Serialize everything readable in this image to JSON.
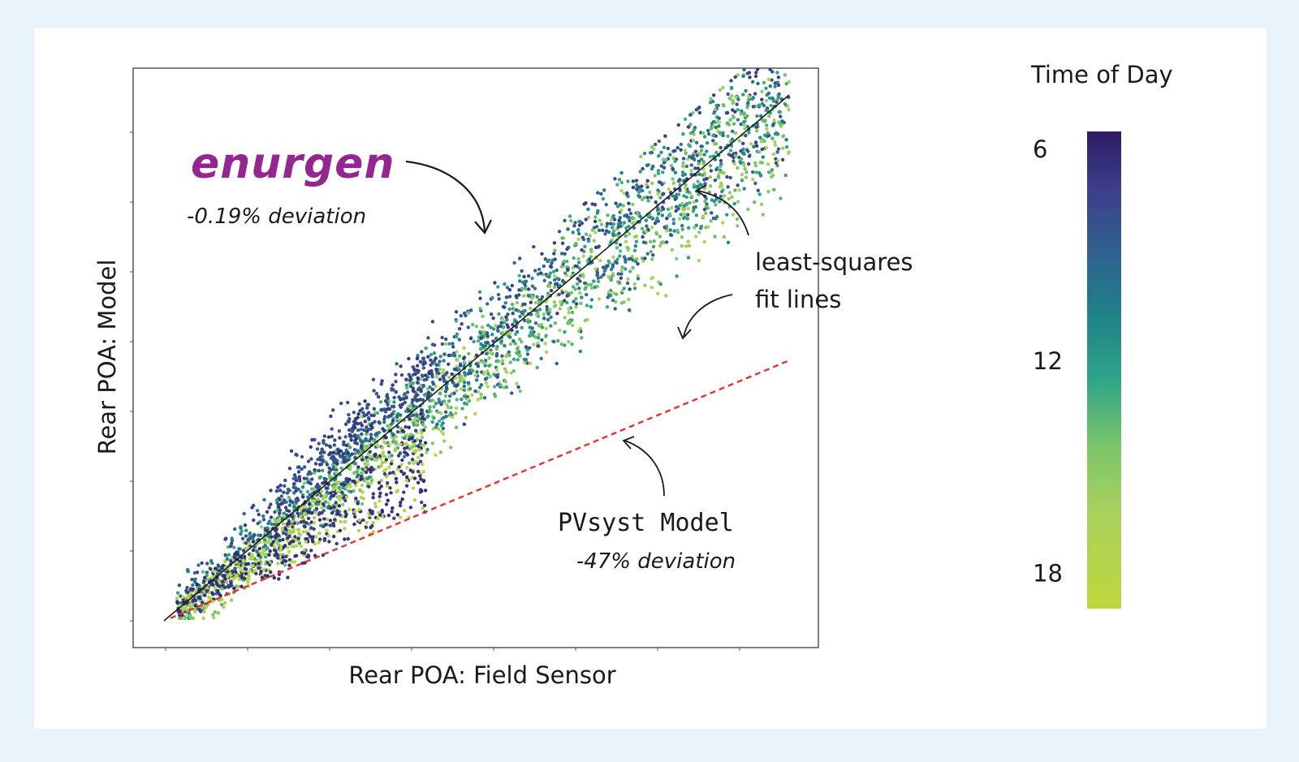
{
  "chart_data": {
    "type": "scatter",
    "title": "",
    "xlabel": "Rear POA: Field Sensor",
    "ylabel": "Rear POA: Model",
    "xlim": [
      0,
      100
    ],
    "ylim": [
      0,
      100
    ],
    "tick_labels_shown": false,
    "grid": false,
    "colorbar": {
      "title": "Time of Day",
      "ticks": [
        6,
        12,
        18
      ],
      "range": [
        5.5,
        19
      ],
      "colormap": "viridis-reversed",
      "colors": [
        "#2e1a63",
        "#3c3f8a",
        "#30608f",
        "#20858c",
        "#3aa882",
        "#78c46a",
        "#a8d35c",
        "#bcd83f"
      ]
    },
    "series": [
      {
        "name": "enurgen",
        "kind": "scatter-cloud",
        "approx_fit": {
          "slope": 1.0,
          "intercept": 0.0
        },
        "deviation": "-0.19% deviation"
      },
      {
        "name": "PVsyst Model",
        "kind": "fit-line",
        "style": "dashed",
        "color": "#e8302f",
        "points": [
          [
            0,
            0.5
          ],
          [
            100,
            49.5
          ]
        ],
        "deviation": "-47% deviation"
      },
      {
        "name": "least-squares fit (enurgen)",
        "kind": "fit-line",
        "style": "solid",
        "color": "#1a1a1a",
        "points": [
          [
            0,
            0
          ],
          [
            100,
            100
          ]
        ]
      }
    ]
  },
  "annotations": {
    "brand": "enurgen",
    "brand_color": "#93268f",
    "enurgen_deviation": "-0.19% deviation",
    "fit_label_line1": "least-squares",
    "fit_label_line2": "fit lines",
    "pvsyst_label": "PVsyst Model",
    "pvsyst_deviation": "-47% deviation"
  }
}
